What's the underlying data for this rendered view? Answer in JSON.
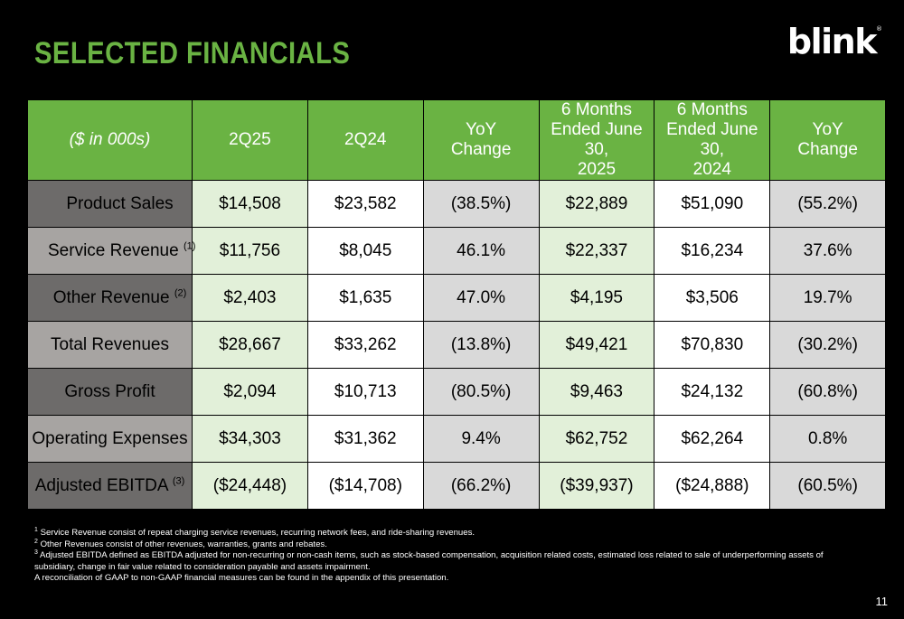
{
  "title": "SELECTED FINANCIALS",
  "logo": {
    "text": "blink",
    "mark": "®"
  },
  "table": {
    "unit_label": "($ in 000s)",
    "headers": [
      "2Q25",
      "2Q24",
      "YoY\nChange",
      "6 Months\nEnded June 30,\n2025",
      "6 Months\nEnded June 30,\n2024",
      "YoY\nChange"
    ],
    "rows": [
      {
        "label": "Product Sales",
        "sup": "",
        "cells": [
          "$14,508",
          "$23,582",
          "(38.5%)",
          "$22,889",
          "$51,090",
          "(55.2%)"
        ]
      },
      {
        "label": "Service Revenue",
        "sup": "(1)",
        "cells": [
          "$11,756",
          "$8,045",
          "46.1%",
          "$22,337",
          "$16,234",
          "37.6%"
        ]
      },
      {
        "label": "Other Revenue",
        "sup": "(2)",
        "cells": [
          "$2,403",
          "$1,635",
          "47.0%",
          "$4,195",
          "$3,506",
          "19.7%"
        ]
      },
      {
        "label": "Total Revenues",
        "sup": "",
        "cells": [
          "$28,667",
          "$33,262",
          "(13.8%)",
          "$49,421",
          "$70,830",
          "(30.2%)"
        ]
      },
      {
        "label": "Gross Profit",
        "sup": "",
        "cells": [
          "$2,094",
          "$10,713",
          "(80.5%)",
          "$9,463",
          "$24,132",
          "(60.8%)"
        ]
      },
      {
        "label": "Operating Expenses",
        "sup": "",
        "cells": [
          "$34,303",
          "$31,362",
          "9.4%",
          "$62,752",
          "$62,264",
          "0.8%"
        ]
      },
      {
        "label": "Adjusted EBITDA",
        "sup": "(3)",
        "cells": [
          "($24,448)",
          "($14,708)",
          "(66.2%)",
          "($39,937)",
          "($24,888)",
          "(60.5%)"
        ]
      }
    ]
  },
  "footnotes": [
    {
      "sup": "1",
      "text": " Service Revenue consist of repeat charging service revenues, recurring network fees, and ride-sharing revenues."
    },
    {
      "sup": "2",
      "text": " Other Revenues consist of other revenues, warranties, grants and rebates."
    },
    {
      "sup": "3",
      "text": " Adjusted EBITDA defined as EBITDA adjusted for non-recurring or non-cash items, such as stock-based compensation, acquisition related costs, estimated loss related to sale of underperforming assets of subsidiary, change in fair value related to consideration payable and assets impairment."
    },
    {
      "sup": "",
      "text": "A reconciliation of GAAP to non-GAAP financial measures can be found in the appendix of this presentation."
    }
  ],
  "page_number": "11",
  "colors": {
    "background": "#000000",
    "brand_green": "#6ab343",
    "light_green": "#e2f0d9",
    "dark_label": "#6d6b6a",
    "light_label": "#a7a4a2",
    "gray_cell": "#d9d9d9"
  }
}
